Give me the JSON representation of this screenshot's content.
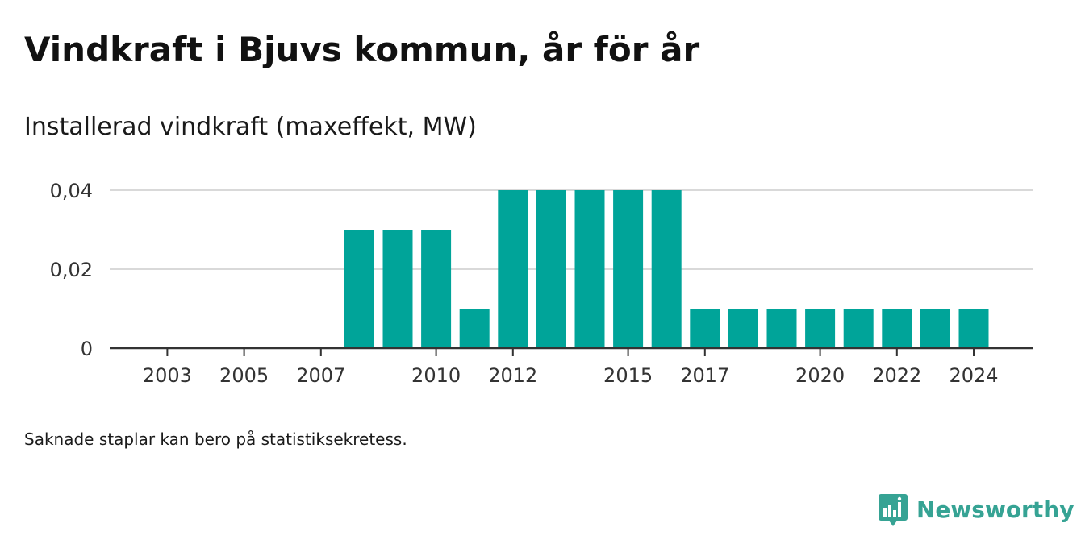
{
  "title": "Vindkraft i Bjuvs kommun, år för år",
  "subtitle": "Installerad vindkraft (maxeffekt, MW)",
  "footnote": "Saknade staplar kan bero på statistiksekretess.",
  "brand": {
    "name": "Newsworthy",
    "icon": "newsworthy-logo-icon",
    "color": "#36a394"
  },
  "colors": {
    "bar": "#00a499",
    "grid": "#d9d9d9",
    "axis": "#333333",
    "text": "#333333"
  },
  "chart_data": {
    "type": "bar",
    "title": "Vindkraft i Bjuvs kommun, år för år",
    "subtitle": "Installerad vindkraft (maxeffekt, MW)",
    "xlabel": "",
    "ylabel": "",
    "categories": [
      2003,
      2004,
      2005,
      2006,
      2007,
      2008,
      2009,
      2010,
      2011,
      2012,
      2013,
      2014,
      2015,
      2016,
      2017,
      2018,
      2019,
      2020,
      2021,
      2022,
      2023,
      2024
    ],
    "values": [
      null,
      null,
      null,
      null,
      null,
      0.03,
      0.03,
      0.03,
      0.01,
      0.04,
      0.04,
      0.04,
      0.04,
      0.04,
      0.01,
      0.01,
      0.01,
      0.01,
      0.01,
      0.01,
      0.01,
      0.01
    ],
    "x_tick_labels": [
      "2003",
      "2005",
      "2007",
      "2010",
      "2012",
      "2015",
      "2017",
      "2020",
      "2022",
      "2024"
    ],
    "y_ticks": [
      0,
      0.02,
      0.04
    ],
    "y_tick_labels": [
      "0",
      "0,02",
      "0,04"
    ],
    "ylim": [
      0,
      0.04
    ],
    "grid": true,
    "legend": "none"
  }
}
